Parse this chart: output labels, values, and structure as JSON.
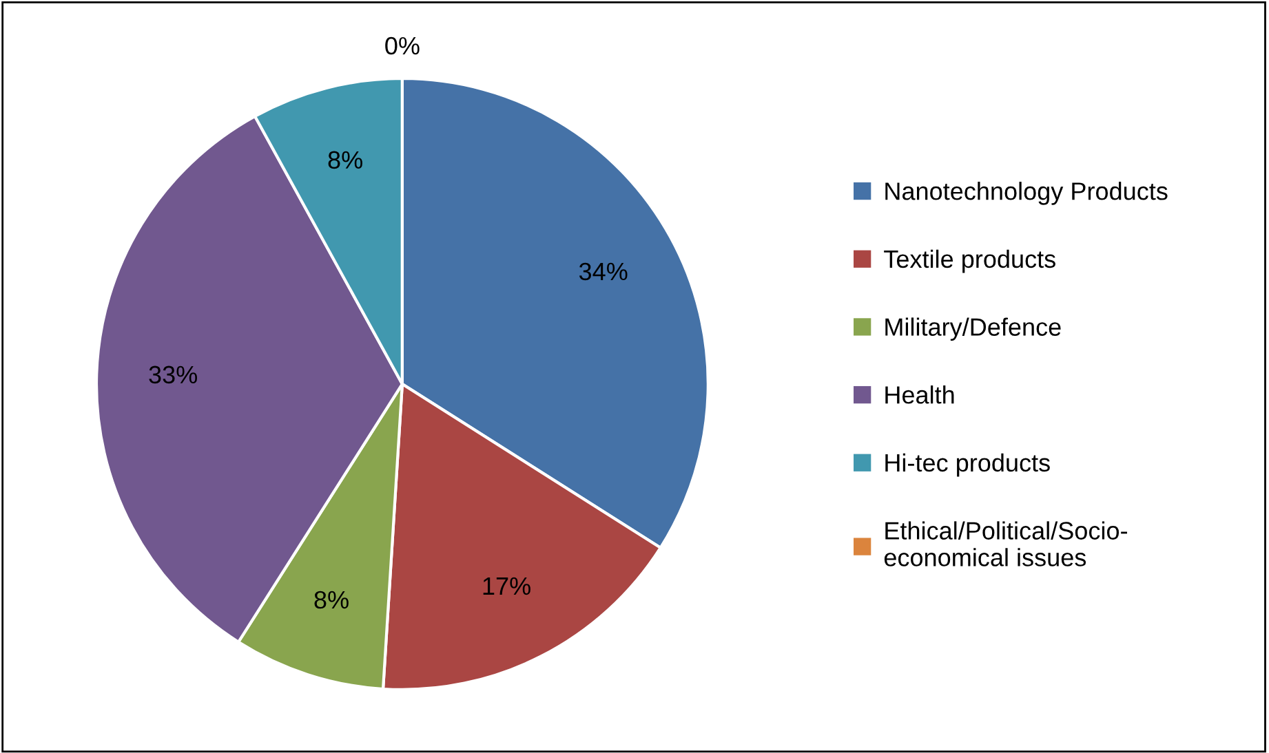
{
  "chart_data": {
    "type": "pie",
    "categories": [
      "Nanotechnology Products",
      "Textile products",
      "Military/Defence",
      "Health",
      "Hi-tec products",
      "Ethical/Political/Socio-\neconomical issues"
    ],
    "values": [
      34,
      17,
      8,
      33,
      8,
      0
    ],
    "value_labels": [
      "34%",
      "17%",
      "8%",
      "33%",
      "8%",
      "0%"
    ],
    "colors": [
      "#4572a7",
      "#aa4643",
      "#89a54e",
      "#71588f",
      "#4198af",
      "#db843d"
    ],
    "legend": "right"
  }
}
